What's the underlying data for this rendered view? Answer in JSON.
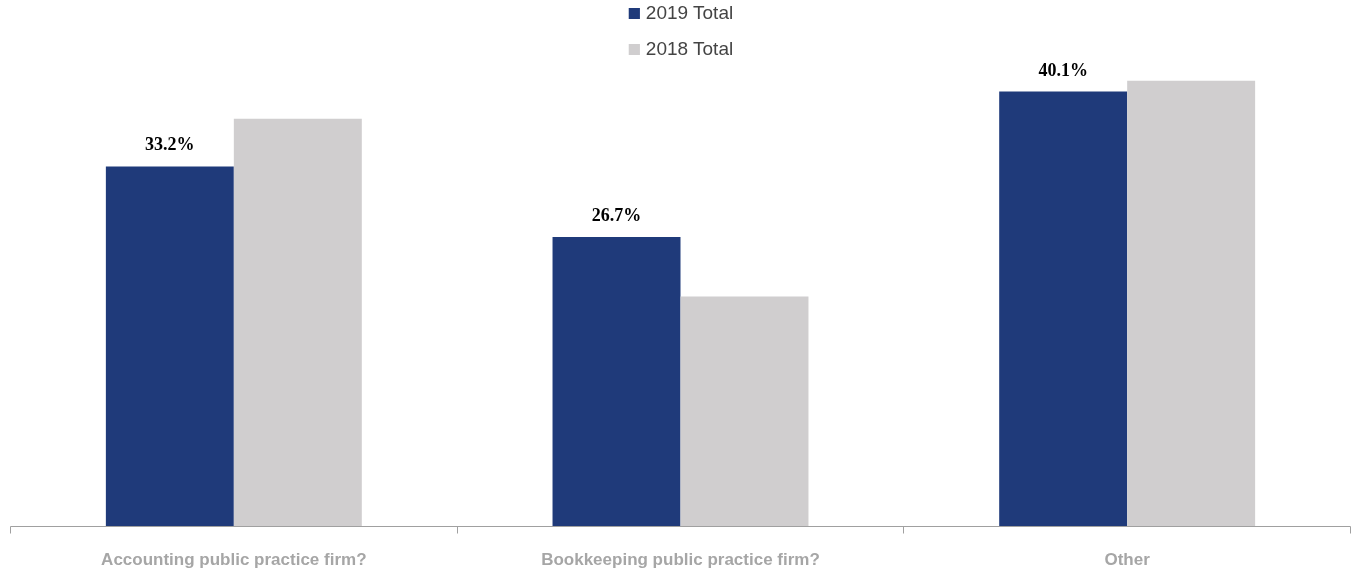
{
  "chart_data": {
    "type": "bar",
    "categories": [
      "Accounting public practice firm?",
      "Bookkeeping public practice firm?",
      "Other"
    ],
    "series": [
      {
        "name": "2019 Total",
        "color": "#1f3a7a",
        "values": [
          33.2,
          26.7,
          40.1
        ],
        "value_labels": [
          "33.2%",
          "26.7%",
          "40.1%"
        ]
      },
      {
        "name": "2018 Total",
        "color": "#d0cecf",
        "values": [
          37.6,
          21.2,
          41.1
        ]
      }
    ],
    "legend": "top",
    "grid": false
  }
}
